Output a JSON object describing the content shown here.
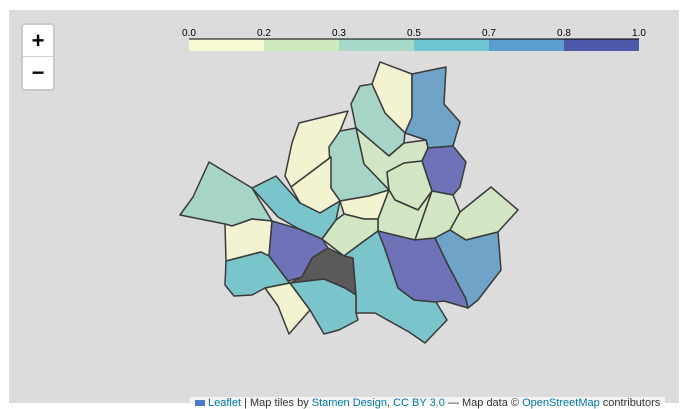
{
  "zoom": {
    "in_label": "+",
    "out_label": "−"
  },
  "legend": {
    "ticks": [
      "0.0",
      "0.2",
      "0.3",
      "0.5",
      "0.7",
      "0.8",
      "1.0"
    ],
    "colors": [
      "#f7f8d4",
      "#cfe9c0",
      "#a7d8c8",
      "#6fc6d2",
      "#5a9ecf",
      "#4d59a8"
    ]
  },
  "map": {
    "colors": {
      "c0": "#f3f3d2",
      "c1": "#d2e6c4",
      "c2": "#a6d5c8",
      "c3": "#7ac4cc",
      "c4": "#6fa4c8",
      "c5": "#6e73b8",
      "nodata": "#5a5a5a",
      "stroke": "#3a3a3a",
      "background": "#dcdcdc"
    }
  },
  "attribution": {
    "leaflet": "Leaflet",
    "tiles_text": " | Map tiles by ",
    "stamen": "Stamen Design",
    "cc_text": ", ",
    "cc": "CC BY 3.0",
    "map_data_text": " — Map data © ",
    "osm": "OpenStreetMap",
    "contrib_text": " contributors"
  }
}
